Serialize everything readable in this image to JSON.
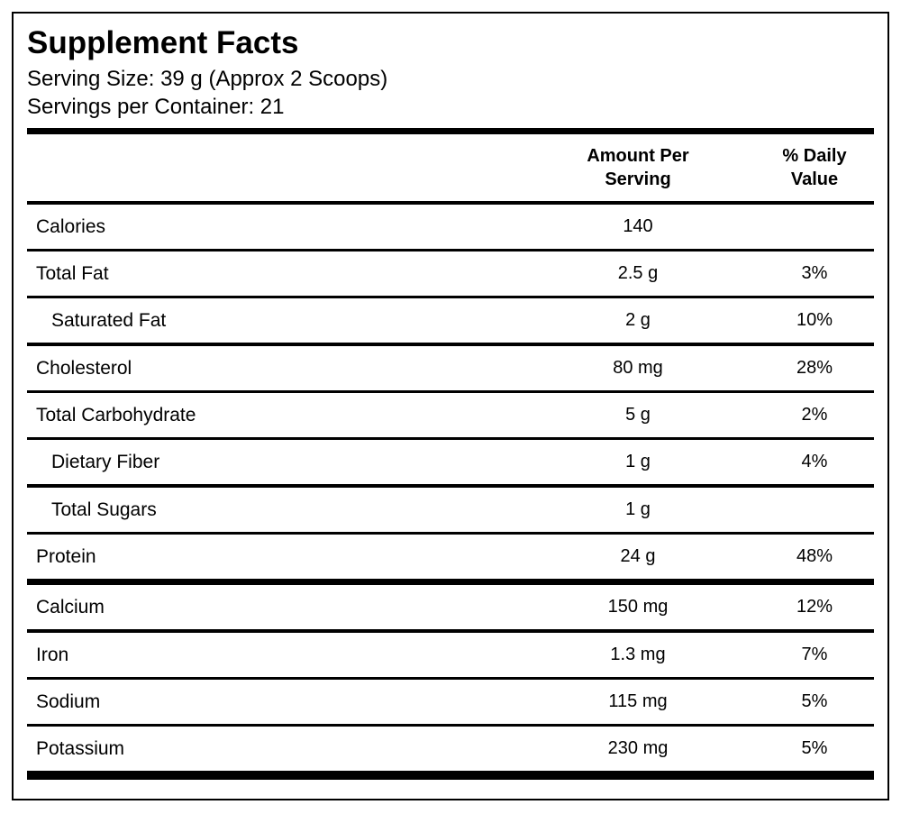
{
  "label": {
    "title": "Supplement Facts",
    "serving_size": "Serving Size: 39 g (Approx 2 Scoops)",
    "servings_per_container": "Servings per Container: 21"
  },
  "table": {
    "columns": {
      "amount": "Amount Per\nServing",
      "daily_value": "% Daily\nValue"
    },
    "rows": [
      {
        "name": "Calories",
        "amount": "140",
        "daily_value": ""
      },
      {
        "name": "Total Fat",
        "amount": "2.5 g",
        "daily_value": "3%"
      },
      {
        "name": "Saturated Fat",
        "amount": "2 g",
        "daily_value": "10%"
      },
      {
        "name": "Cholesterol",
        "amount": "80 mg",
        "daily_value": "28%"
      },
      {
        "name": "Total Carbohydrate",
        "amount": "5 g",
        "daily_value": "2%"
      },
      {
        "name": "Dietary Fiber",
        "amount": "1 g",
        "daily_value": "4%"
      },
      {
        "name": "Total Sugars",
        "amount": "1 g",
        "daily_value": ""
      },
      {
        "name": "Protein",
        "amount": "24 g",
        "daily_value": "48%"
      },
      {
        "name": "Calcium",
        "amount": "150 mg",
        "daily_value": "12%"
      },
      {
        "name": "Iron",
        "amount": "1.3 mg",
        "daily_value": "7%"
      },
      {
        "name": "Sodium",
        "amount": "115 mg",
        "daily_value": "5%"
      },
      {
        "name": "Potassium",
        "amount": "230 mg",
        "daily_value": "5%"
      }
    ]
  },
  "colors": {
    "text": "#000000",
    "background": "#ffffff",
    "border": "#000000"
  }
}
